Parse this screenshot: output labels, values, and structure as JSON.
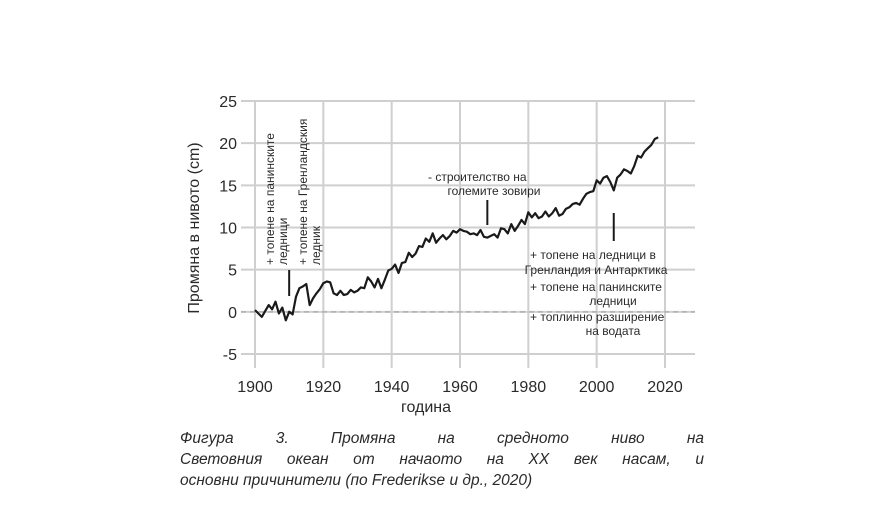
{
  "chart_data": {
    "type": "line",
    "xlabel": "година",
    "ylabel": "Промяна в нивото (cm)",
    "xlim": [
      1900,
      2020
    ],
    "ylim": [
      -5,
      25
    ],
    "x_ticks": [
      "1900",
      "1920",
      "1940",
      "1960",
      "1980",
      "2000",
      "2020"
    ],
    "y_ticks": [
      "25",
      "20",
      "15",
      "10",
      "5",
      "0",
      "-5"
    ],
    "grid": true,
    "baseline_dashed_at": 0,
    "series": [
      {
        "x": [
          1900,
          1902,
          1904,
          1905,
          1906,
          1907,
          1908,
          1909,
          1910,
          1911,
          1912,
          1913,
          1914,
          1915,
          1916,
          1917,
          1918,
          1919,
          1920,
          1921,
          1922,
          1923,
          1924,
          1925,
          1926,
          1927,
          1928,
          1929,
          1930,
          1931,
          1932,
          1933,
          1934,
          1935,
          1936,
          1937,
          1938,
          1939,
          1940,
          1941,
          1942,
          1943,
          1944,
          1945,
          1946,
          1947,
          1948,
          1949,
          1950,
          1951,
          1952,
          1953,
          1954,
          1955,
          1956,
          1957,
          1958,
          1959,
          1960,
          1961,
          1962,
          1963,
          1964,
          1965,
          1966,
          1967,
          1968,
          1969,
          1970,
          1971,
          1972,
          1973,
          1974,
          1975,
          1976,
          1977,
          1978,
          1979,
          1980,
          1981,
          1982,
          1983,
          1984,
          1985,
          1986,
          1987,
          1988,
          1989,
          1990,
          1991,
          1992,
          1993,
          1994,
          1995,
          1996,
          1997,
          1998,
          1999,
          2000,
          2001,
          2002,
          2003,
          2004,
          2005,
          2006,
          2007,
          2008,
          2009,
          2010,
          2011,
          2012,
          2013,
          2014,
          2015,
          2016,
          2017,
          2018
        ],
        "values": [
          0.2,
          -0.6,
          0.8,
          0.3,
          1.2,
          -0.2,
          0.5,
          -1.0,
          0.0,
          -0.3,
          1.8,
          2.8,
          3.0,
          3.3,
          0.8,
          1.6,
          2.2,
          2.7,
          3.4,
          3.6,
          3.5,
          2.2,
          2.0,
          2.5,
          2.0,
          2.1,
          2.6,
          2.3,
          2.5,
          2.9,
          2.8,
          4.1,
          3.6,
          2.9,
          3.9,
          2.8,
          3.8,
          4.9,
          5.1,
          5.6,
          4.6,
          5.8,
          5.9,
          7.0,
          6.5,
          6.9,
          7.8,
          7.7,
          8.7,
          8.3,
          9.3,
          8.2,
          8.7,
          9.1,
          8.6,
          9.0,
          9.6,
          9.4,
          9.8,
          9.6,
          9.5,
          9.2,
          9.3,
          9.1,
          9.7,
          8.9,
          8.8,
          9.0,
          9.2,
          8.8,
          9.9,
          9.8,
          9.3,
          10.4,
          9.6,
          10.2,
          10.9,
          10.4,
          11.8,
          11.2,
          11.7,
          11.1,
          11.3,
          11.9,
          11.3,
          11.7,
          12.3,
          11.4,
          11.6,
          12.2,
          12.4,
          12.8,
          12.9,
          12.7,
          13.4,
          14.0,
          14.2,
          14.3,
          15.6,
          15.2,
          15.9,
          16.1,
          15.4,
          14.4,
          15.9,
          16.3,
          16.9,
          16.7,
          16.4,
          17.3,
          18.5,
          18.3,
          19.0,
          19.4,
          19.8,
          20.5,
          20.7
        ]
      }
    ],
    "annotations": [
      {
        "lines": [
          "+ топене на панинските",
          "ледници"
        ],
        "rotated": true,
        "year": 1910
      },
      {
        "lines": [
          "+ топене на Гренландския",
          "ледник"
        ],
        "rotated": true,
        "year": 1910
      },
      {
        "lines": [
          "-  строителство на",
          "големите зовири"
        ],
        "rotated": false,
        "year": 1968
      },
      {
        "lines": [
          "+ топене на ледници в",
          "Гренландия и Антарктика",
          "+ топене на панинските",
          "ледници",
          "+ топлинно разширение",
          "на водата"
        ],
        "rotated": false,
        "year": 2005
      }
    ],
    "line_color": "#1a1a1a",
    "grid_color": "#cfcfcf"
  },
  "caption": {
    "lines": [
      "Фигура 3. Промяна на средното ниво на",
      "Световния океан от начаото на XX век насам, и",
      "основни причинители (по Frederikse и др., 2020)"
    ]
  }
}
